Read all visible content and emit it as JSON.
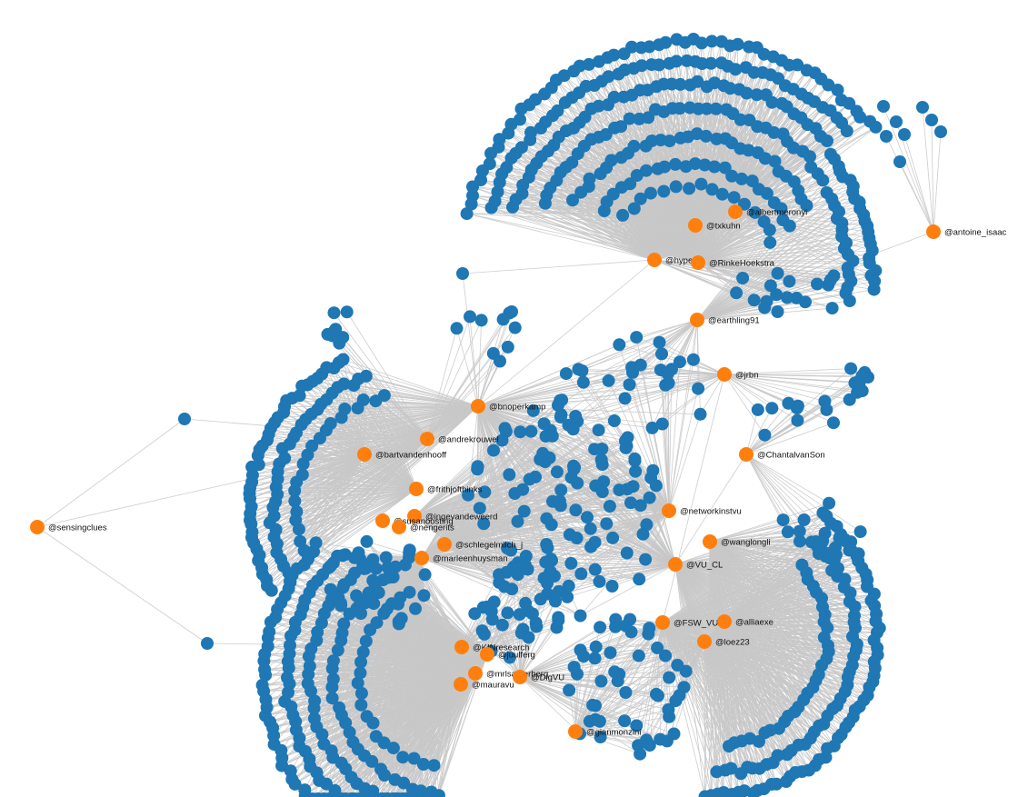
{
  "graph": {
    "colors": {
      "seed": "#ff7f0e",
      "follower": "#1f77b4",
      "link": "#c8c8c8"
    },
    "labels": {
      "sensingclues": "@sensingclues",
      "antoine_isaac": "@antoine_isaac",
      "albertmeronyi": "@albertmeronyi",
      "txkuhn": "@txkuhn",
      "hyperk": "@hyperk",
      "rinkehoekstra": "@RinkeHoekstra",
      "earthling91": "@earthling91",
      "jrbn": "@jrbn",
      "bnoperkamp": "@bnoperkamp",
      "andrekrouwel": "@andrekrouwel",
      "bartvandenhooff": "@bartvandenhooff",
      "chantalvanson": "@ChantalvanSon",
      "frithjofthinks": "@frithjofthinks",
      "ingevandeweerd": "@ingevandeweerd",
      "susanoosting": "@susanoosting",
      "nengerits": "@nengerits",
      "networkinstvu": "@networkinstvu",
      "schlegelmilch_j": "@schlegelmilch_j",
      "wanglongli": "@wanglongli",
      "marleenhuysman": "@marleenhuysman",
      "vu_cl": "@VU_CL",
      "fsw_vu": "@FSW_VU",
      "alliaexe": "@alliaexe",
      "loez23": "@loez23",
      "kinresearch": "@KINresearch",
      "juulferg": "@juulferg",
      "mrlsagterberg": "@mrlsagterberg",
      "digvu": "@DigVU",
      "mauravu": "@mauravu",
      "gianmonzini": "@gianmonzini"
    }
  }
}
